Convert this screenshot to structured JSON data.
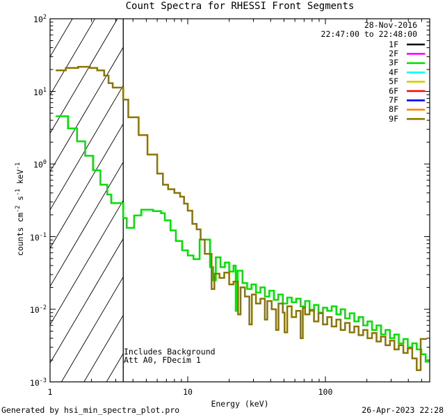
{
  "title": "Count Spectra for RHESSI Front Segments",
  "header": {
    "date": "28-Nov-2016",
    "time_range": "22:47:00 to 22:48:00"
  },
  "legend": {
    "items": [
      {
        "label": "1F",
        "color": "#000000"
      },
      {
        "label": "2F",
        "color": "#ff00ff"
      },
      {
        "label": "3F",
        "color": "#00e400"
      },
      {
        "label": "4F",
        "color": "#00ffff"
      },
      {
        "label": "5F",
        "color": "#cfcf00"
      },
      {
        "label": "6F",
        "color": "#ff0000"
      },
      {
        "label": "7F",
        "color": "#0000ff"
      },
      {
        "label": "8F",
        "color": "#ff8400"
      },
      {
        "label": "9F",
        "color": "#8b7500"
      }
    ]
  },
  "annotations": {
    "line1": "Includes Background",
    "line2": "Att A0, FDecim 1"
  },
  "footer": {
    "left": "Generated by hsi_min_spectra_plot.pro",
    "right": "26-Apr-2023 22:28"
  },
  "axes": {
    "x": {
      "label": "Energy (keV)",
      "scale": "log",
      "ticks": [
        {
          "label": "1",
          "value": 1
        },
        {
          "label": "10",
          "value": 10
        },
        {
          "label": "100",
          "value": 100
        }
      ]
    },
    "y": {
      "scale": "log",
      "label_parts": [
        {
          "text": "counts cm"
        },
        {
          "sup": "-2"
        },
        {
          "text": " s"
        },
        {
          "sup": "-1"
        },
        {
          "text": " keV"
        },
        {
          "sup": "-1"
        }
      ],
      "ticks": [
        {
          "mantissa": "10",
          "exp": "2",
          "value": 100
        },
        {
          "mantissa": "10",
          "exp": "1",
          "value": 10
        },
        {
          "mantissa": "10",
          "exp": "0",
          "value": 1
        },
        {
          "mantissa": "10",
          "exp": "-1",
          "value": 0.1
        },
        {
          "mantissa": "10",
          "exp": "-2",
          "value": 0.01
        },
        {
          "mantissa": "10",
          "exp": "-3",
          "value": 0.001
        }
      ]
    }
  },
  "chart_data": {
    "type": "line",
    "step": true,
    "x_scale": "log",
    "y_scale": "log",
    "xlim": [
      1,
      572
    ],
    "ylim": [
      0.001,
      100
    ],
    "title": "Count Spectra for RHESSI Front Segments",
    "xlabel": "Energy (keV)",
    "ylabel": "counts cm^-2 s^-1 keV^-1",
    "grid": false,
    "legend_position": "top-right",
    "hatch_region": {
      "x_from": 1,
      "x_to": 3.4
    },
    "cutoff_line_x": 3.4,
    "series": [
      {
        "name": "3F",
        "color": "#00e100",
        "x_end": 570,
        "bins": [
          [
            1.1,
            4.55
          ],
          [
            1.35,
            3.1
          ],
          [
            1.57,
            2.05
          ],
          [
            1.8,
            1.3
          ],
          [
            2.05,
            0.82
          ],
          [
            2.32,
            0.52
          ],
          [
            2.6,
            0.38
          ],
          [
            2.78,
            0.29
          ],
          [
            3.4,
            0.18
          ],
          [
            3.6,
            0.132
          ],
          [
            4.08,
            0.196
          ],
          [
            4.6,
            0.235
          ],
          [
            5.6,
            0.225
          ],
          [
            6.4,
            0.21
          ],
          [
            6.81,
            0.168
          ],
          [
            7.5,
            0.122
          ],
          [
            8.2,
            0.087
          ],
          [
            9.1,
            0.065
          ],
          [
            10.0,
            0.055
          ],
          [
            11.0,
            0.049
          ],
          [
            12.2,
            0.091
          ],
          [
            14.5,
            0.038
          ],
          [
            15.3,
            0.025
          ],
          [
            16.0,
            0.052
          ],
          [
            17.3,
            0.038
          ],
          [
            18.6,
            0.044
          ],
          [
            20.0,
            0.033
          ],
          [
            21.5,
            0.04
          ],
          [
            22.3,
            0.0095
          ],
          [
            23.0,
            0.034
          ],
          [
            25.0,
            0.023
          ],
          [
            27.0,
            0.019
          ],
          [
            29.0,
            0.022
          ],
          [
            31.3,
            0.017
          ],
          [
            33.7,
            0.02
          ],
          [
            36.3,
            0.015
          ],
          [
            39.1,
            0.018
          ],
          [
            42.2,
            0.0135
          ],
          [
            45.4,
            0.016
          ],
          [
            49.0,
            0.012
          ],
          [
            52.8,
            0.0145
          ],
          [
            56.9,
            0.0125
          ],
          [
            61.3,
            0.014
          ],
          [
            66.0,
            0.011
          ],
          [
            71.2,
            0.013
          ],
          [
            76.7,
            0.0095
          ],
          [
            82.6,
            0.0115
          ],
          [
            89.0,
            0.009
          ],
          [
            95.9,
            0.0105
          ],
          [
            103,
            0.0095
          ],
          [
            111,
            0.011
          ],
          [
            120,
            0.0085
          ],
          [
            129,
            0.01
          ],
          [
            139,
            0.0075
          ],
          [
            150,
            0.0088
          ],
          [
            162,
            0.0068
          ],
          [
            174,
            0.0078
          ],
          [
            188,
            0.006
          ],
          [
            202,
            0.0068
          ],
          [
            218,
            0.0052
          ],
          [
            235,
            0.006
          ],
          [
            253,
            0.0045
          ],
          [
            273,
            0.0052
          ],
          [
            294,
            0.004
          ],
          [
            317,
            0.0045
          ],
          [
            341,
            0.0034
          ],
          [
            368,
            0.0039
          ],
          [
            396,
            0.003
          ],
          [
            427,
            0.0034
          ],
          [
            460,
            0.0028
          ],
          [
            496,
            0.0024
          ],
          [
            534,
            0.0019
          ]
        ]
      },
      {
        "name": "9F",
        "color": "#8b7500",
        "x_end": 545,
        "bins": [
          [
            1.1,
            19.5
          ],
          [
            1.3,
            21.0
          ],
          [
            1.6,
            21.8
          ],
          [
            1.95,
            21.0
          ],
          [
            2.2,
            19.5
          ],
          [
            2.47,
            16.5
          ],
          [
            2.66,
            13.0
          ],
          [
            2.85,
            11.3
          ],
          [
            3.4,
            7.7
          ],
          [
            3.7,
            4.4
          ],
          [
            4.4,
            2.5
          ],
          [
            5.1,
            1.35
          ],
          [
            6.0,
            0.74
          ],
          [
            6.6,
            0.52
          ],
          [
            7.2,
            0.45
          ],
          [
            8.0,
            0.4
          ],
          [
            8.8,
            0.355
          ],
          [
            9.4,
            0.285
          ],
          [
            10.0,
            0.228
          ],
          [
            10.8,
            0.15
          ],
          [
            11.6,
            0.126
          ],
          [
            12.4,
            0.091
          ],
          [
            13.3,
            0.058
          ],
          [
            14.9,
            0.019
          ],
          [
            15.6,
            0.031
          ],
          [
            17.0,
            0.027
          ],
          [
            18.4,
            0.032
          ],
          [
            20.0,
            0.022
          ],
          [
            21.5,
            0.024
          ],
          [
            23.2,
            0.0085
          ],
          [
            24.2,
            0.02
          ],
          [
            26.0,
            0.015
          ],
          [
            28.0,
            0.0062
          ],
          [
            29.2,
            0.016
          ],
          [
            31.3,
            0.012
          ],
          [
            33.7,
            0.014
          ],
          [
            36.3,
            0.0072
          ],
          [
            37.8,
            0.013
          ],
          [
            40.7,
            0.01
          ],
          [
            43.8,
            0.0052
          ],
          [
            45.6,
            0.012
          ],
          [
            49.0,
            0.009
          ],
          [
            50.5,
            0.0048
          ],
          [
            52.8,
            0.011
          ],
          [
            56.9,
            0.0078
          ],
          [
            61.3,
            0.0095
          ],
          [
            66.0,
            0.004
          ],
          [
            68.5,
            0.0105
          ],
          [
            71.2,
            0.0085
          ],
          [
            76.7,
            0.0098
          ],
          [
            82.6,
            0.0068
          ],
          [
            89.0,
            0.0088
          ],
          [
            95.9,
            0.0062
          ],
          [
            103,
            0.0078
          ],
          [
            111,
            0.0058
          ],
          [
            120,
            0.0072
          ],
          [
            129,
            0.0052
          ],
          [
            139,
            0.0065
          ],
          [
            150,
            0.0048
          ],
          [
            162,
            0.0058
          ],
          [
            174,
            0.0044
          ],
          [
            188,
            0.0052
          ],
          [
            202,
            0.004
          ],
          [
            218,
            0.0047
          ],
          [
            235,
            0.0036
          ],
          [
            253,
            0.0042
          ],
          [
            273,
            0.0032
          ],
          [
            294,
            0.0037
          ],
          [
            317,
            0.0028
          ],
          [
            341,
            0.0032
          ],
          [
            368,
            0.0025
          ],
          [
            396,
            0.0029
          ],
          [
            427,
            0.0021
          ],
          [
            460,
            0.00145
          ],
          [
            492,
            0.0039
          ]
        ]
      }
    ]
  }
}
